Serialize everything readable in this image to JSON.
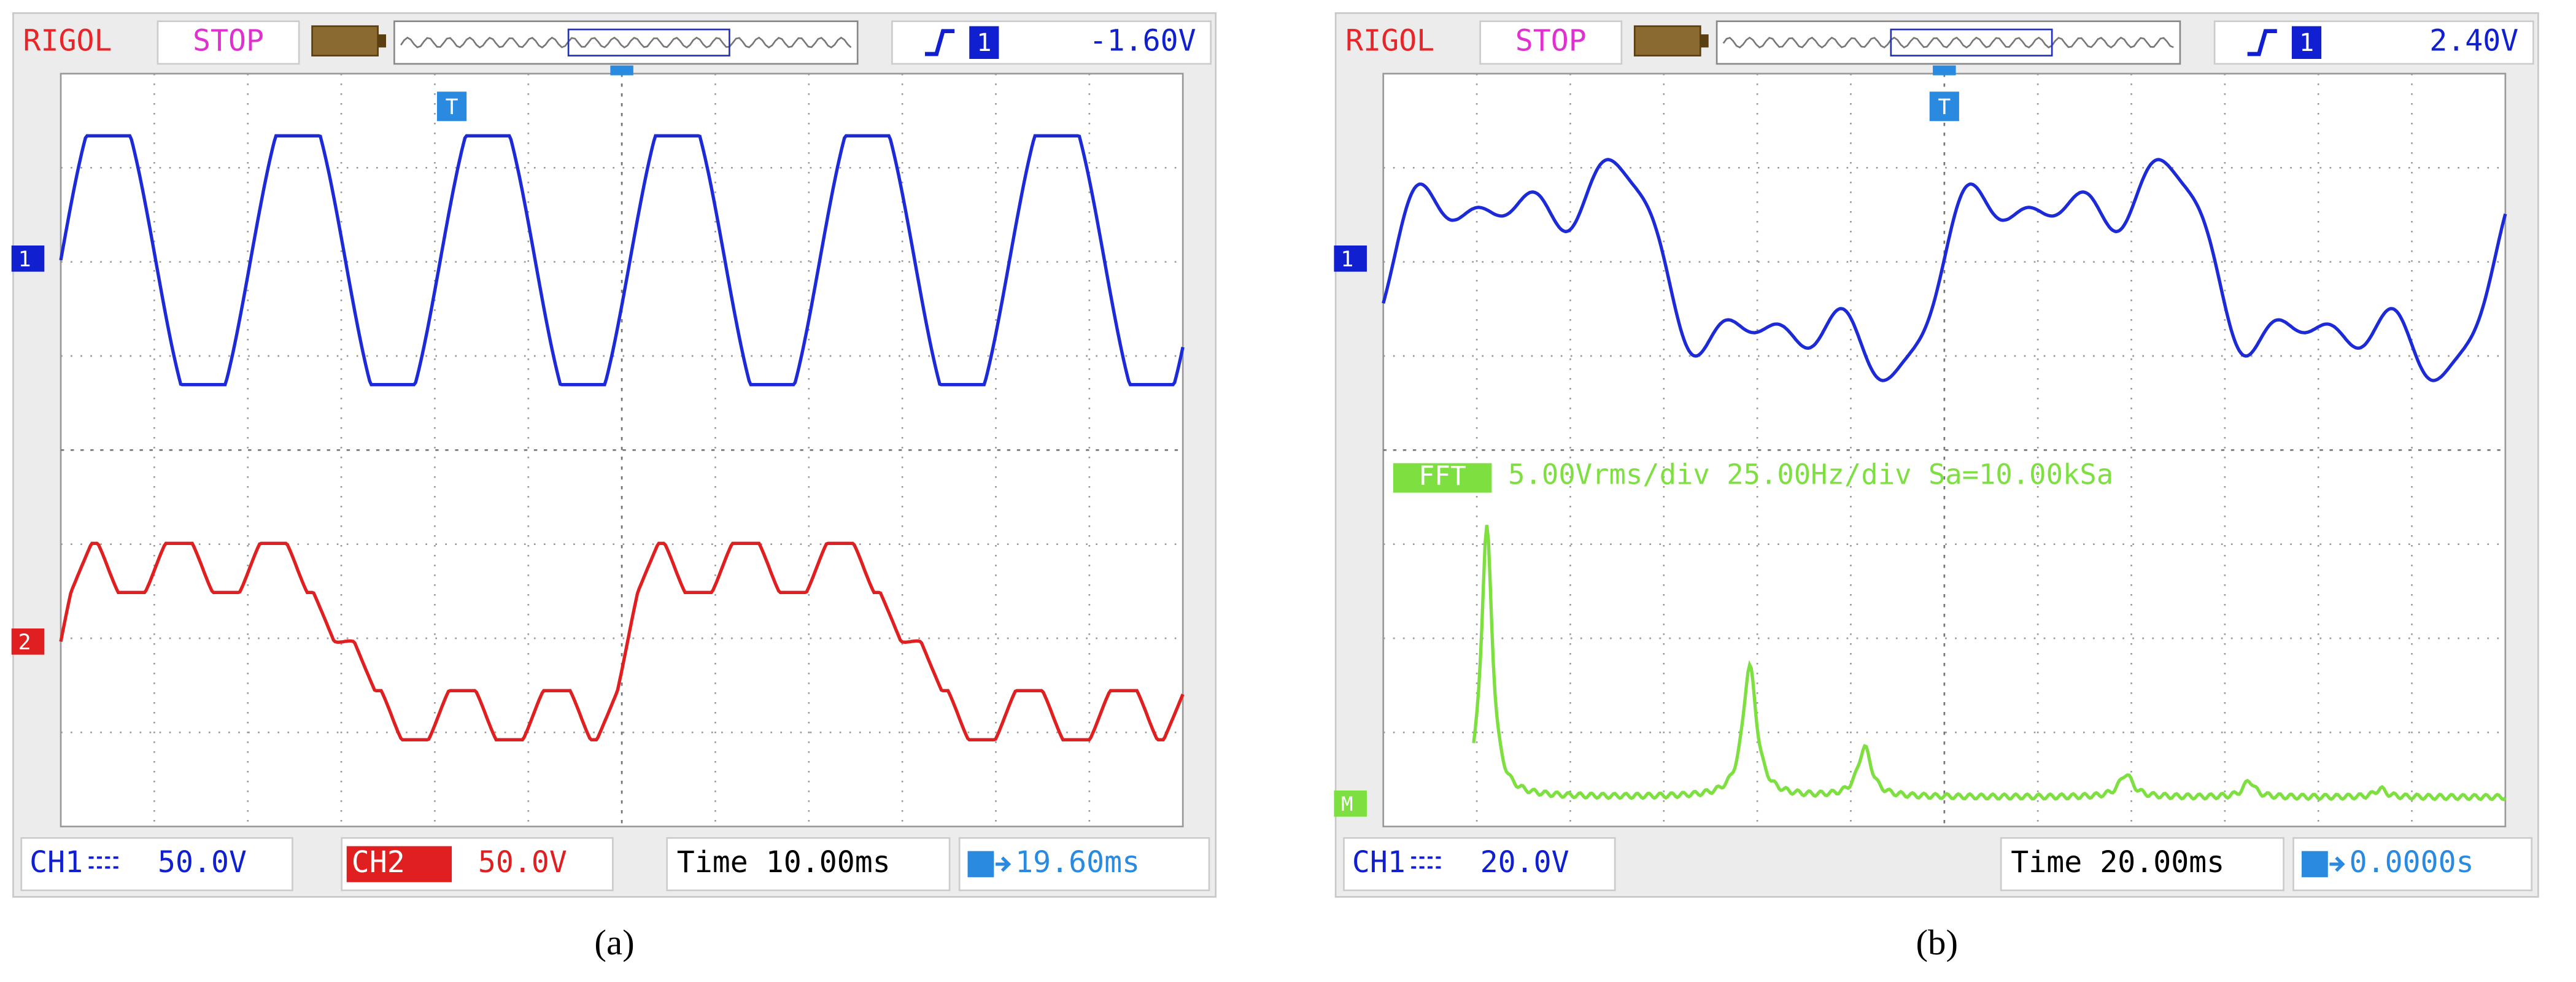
{
  "panels": [
    {
      "header": {
        "brand": "RIGOL",
        "status": "STOP",
        "trigger_channel": "1",
        "trigger_level": "-1.60V"
      },
      "markers": {
        "ch1": "1",
        "ch2": "2",
        "trigger": "T"
      },
      "footer": {
        "ch1": "CH1",
        "ch1_scale": "50.0V",
        "ch2": "CH2",
        "ch2_scale": "50.0V",
        "time": "Time 10.00ms",
        "offset": "19.60ms"
      },
      "caption": "(a)"
    },
    {
      "header": {
        "brand": "RIGOL",
        "status": "STOP",
        "trigger_channel": "1",
        "trigger_level": "2.40V"
      },
      "markers": {
        "ch1": "1",
        "trigger": "T"
      },
      "fft": {
        "label": "FFT",
        "info": "5.00Vrms/div 25.00Hz/div Sa=10.00kSa",
        "marker": "M"
      },
      "footer": {
        "ch1": "CH1",
        "ch1_scale": "20.0V",
        "time": "Time 20.00ms",
        "offset": "0.0000s"
      },
      "caption": "(b)"
    }
  ]
}
